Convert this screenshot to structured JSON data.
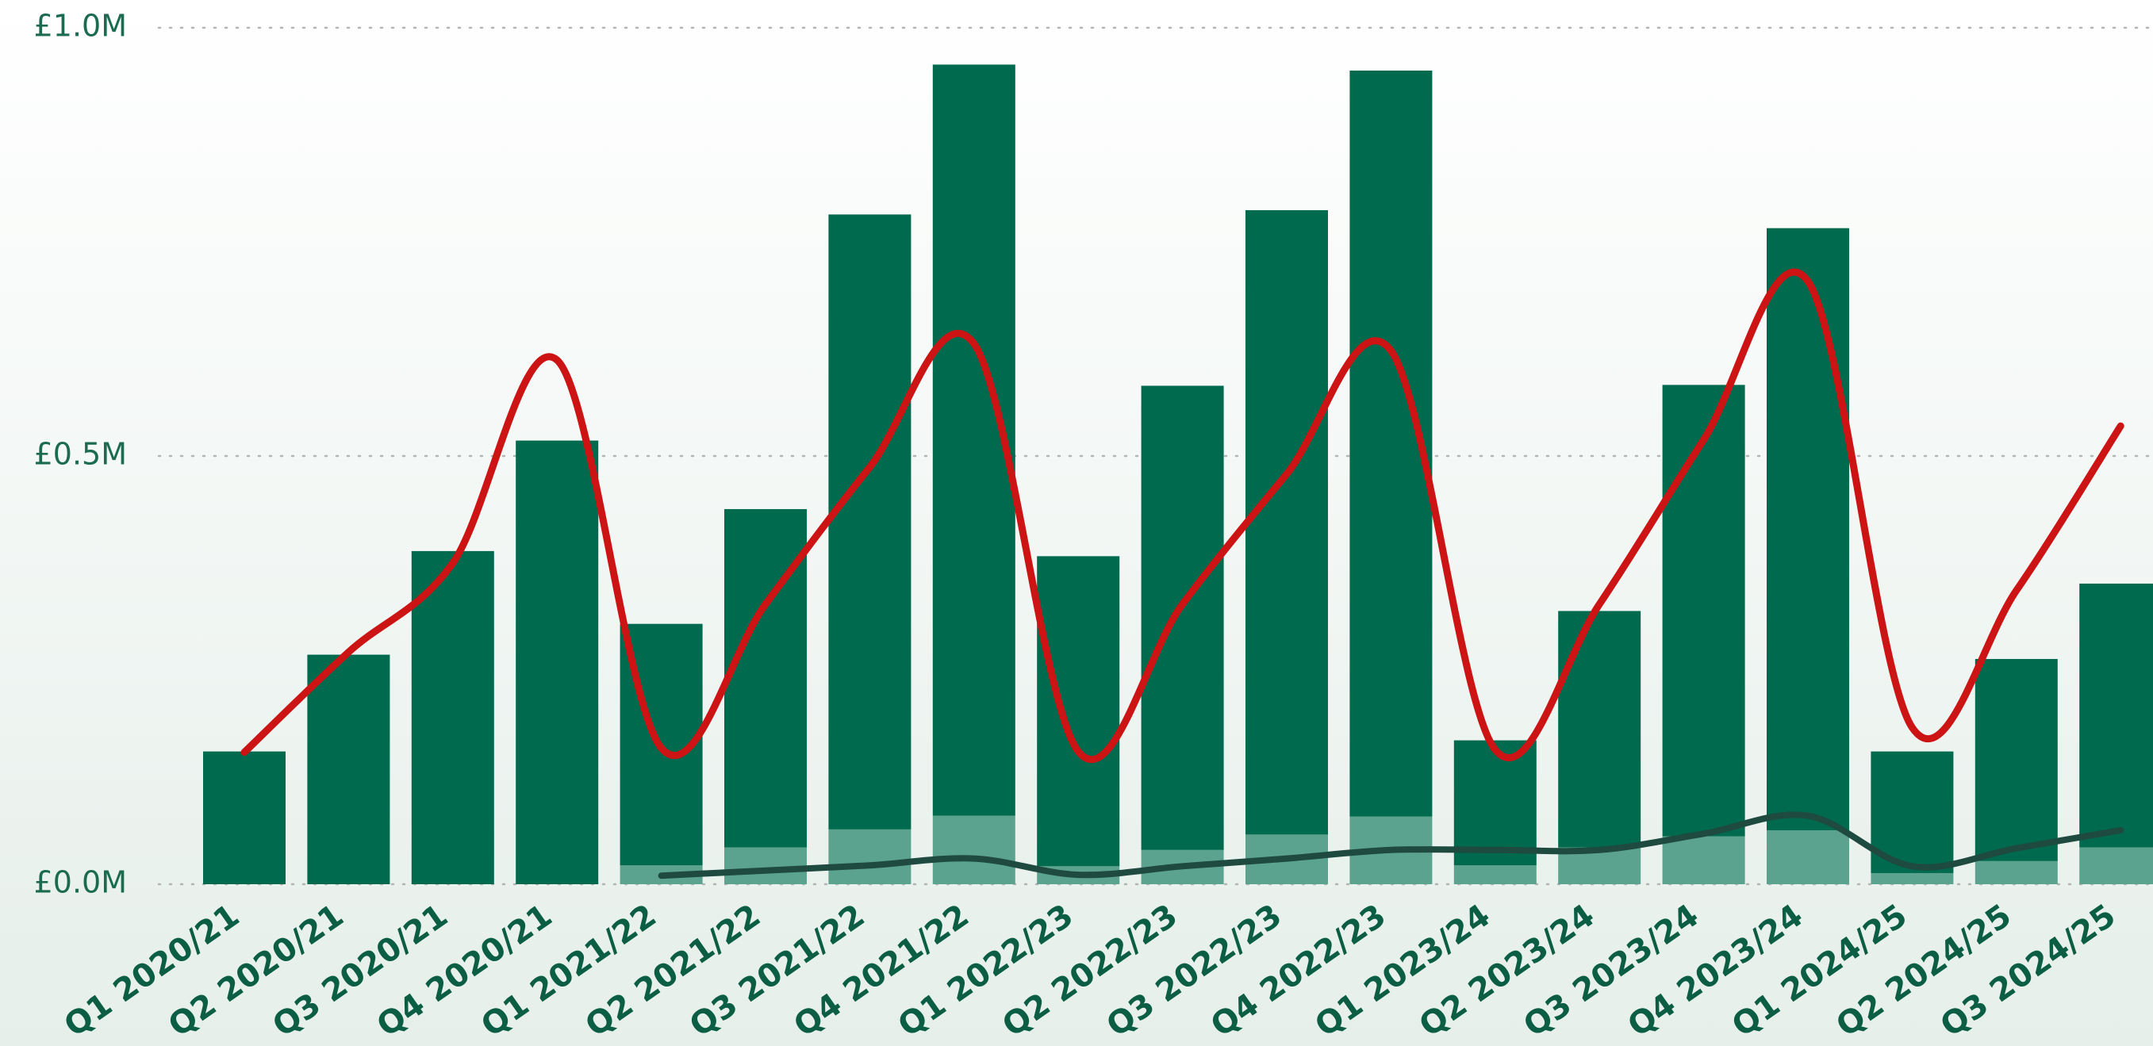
{
  "chart_data": {
    "type": "bar",
    "categories": [
      "Q1 2020/21",
      "Q2 2020/21",
      "Q3 2020/21",
      "Q4 2020/21",
      "Q1 2021/22",
      "Q2 2021/22",
      "Q3 2021/22",
      "Q4 2021/22",
      "Q1 2022/23",
      "Q2 2022/23",
      "Q3 2022/23",
      "Q4 2022/23",
      "Q1 2023/24",
      "Q2 2023/24",
      "Q3 2023/24",
      "Q4 2023/24",
      "Q1 2024/25",
      "Q2 2024/25",
      "Q3 2024/25"
    ],
    "series": [
      {
        "type": "bar",
        "color": "#5ba38e",
        "values": [
          0,
          0,
          0,
          0,
          0.022,
          0.043,
          0.064,
          0.08,
          0.021,
          0.04,
          0.058,
          0.079,
          0.022,
          0.043,
          0.056,
          0.063,
          0.013,
          0.027,
          0.043
        ]
      },
      {
        "type": "bar",
        "color": "#006a4e",
        "values": [
          0.155,
          0.268,
          0.389,
          0.518,
          0.282,
          0.395,
          0.718,
          0.877,
          0.362,
          0.542,
          0.729,
          0.871,
          0.146,
          0.276,
          0.527,
          0.703,
          0.142,
          0.236,
          0.308
        ]
      },
      {
        "type": "line",
        "color": "#cc1414",
        "values": [
          0.154,
          0.271,
          0.375,
          0.612,
          0.159,
          0.327,
          0.487,
          0.631,
          0.155,
          0.327,
          0.479,
          0.623,
          0.157,
          0.327,
          0.519,
          0.704,
          0.183,
          0.343,
          0.535
        ]
      },
      {
        "type": "line",
        "color": "#1e4a40",
        "values": [
          null,
          null,
          null,
          null,
          0.01,
          0.016,
          0.022,
          0.03,
          0.011,
          0.021,
          0.03,
          0.04,
          0.04,
          0.04,
          0.059,
          0.08,
          0.021,
          0.042,
          0.063
        ]
      }
    ],
    "ylim": [
      0,
      1.0
    ],
    "yticks": [
      {
        "value": 0,
        "label": "£0.0M"
      },
      {
        "value": 0.5,
        "label": "£0.5M"
      },
      {
        "value": 1.0,
        "label": "£1.0M"
      }
    ],
    "grid": true
  }
}
